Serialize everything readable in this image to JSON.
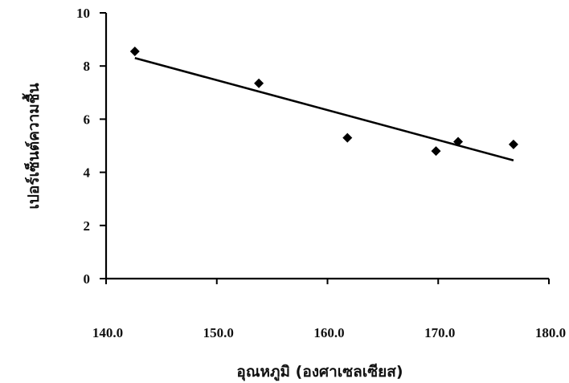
{
  "chart_data": {
    "type": "scatter",
    "title": "",
    "xlabel": "อุณหภูมิ (องศาเซลเซียส)",
    "ylabel": "เปอร์เซ็นต์ความชื้น",
    "xlim": [
      140.0,
      180.0
    ],
    "ylim": [
      0,
      10
    ],
    "xticks": [
      "140.0",
      "150.0",
      "160.0",
      "170.0",
      "180.0"
    ],
    "yticks": [
      "0",
      "2",
      "4",
      "6",
      "8",
      "10"
    ],
    "grid": false,
    "series": [
      {
        "marker": "diamond",
        "color": "#000000",
        "points": [
          {
            "x": 142.6,
            "y": 8.55
          },
          {
            "x": 153.8,
            "y": 7.35
          },
          {
            "x": 161.8,
            "y": 5.3
          },
          {
            "x": 169.8,
            "y": 4.8
          },
          {
            "x": 171.8,
            "y": 5.15
          },
          {
            "x": 176.8,
            "y": 5.05
          }
        ]
      }
    ],
    "trendline": {
      "type": "linear",
      "x": [
        142.6,
        176.8
      ],
      "y": [
        8.3,
        4.45
      ]
    }
  }
}
